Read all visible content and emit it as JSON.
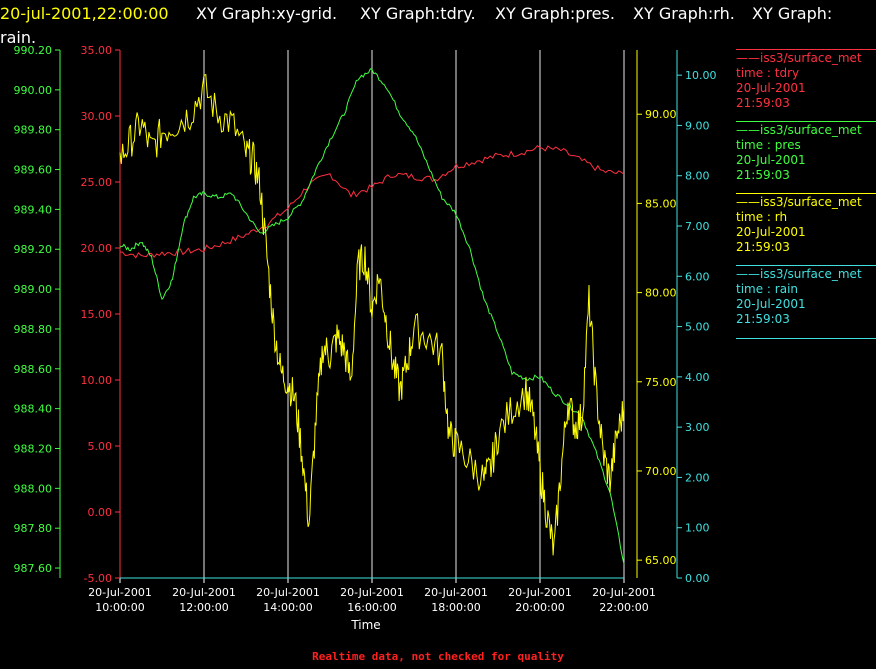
{
  "header": {
    "timestamp": "20-jul-2001,22:00:00",
    "segments": [
      "XY Graph:xy-grid.",
      "XY Graph:tdry.",
      "XY Graph:pres.",
      "XY Graph:rh.",
      "XY Graph:"
    ],
    "line2": "rain.",
    "timestamp_color": "#ffff00"
  },
  "footer": {
    "note": "Realtime data, not checked for quality",
    "color": "#ff2020"
  },
  "legend": [
    {
      "source": "iss3/surface_met",
      "var": "time : tdry",
      "date": "20-Jul-2001",
      "time": "21:59:03",
      "color": "#ff3040"
    },
    {
      "source": "iss3/surface_met",
      "var": "time : pres",
      "date": "20-Jul-2001",
      "time": "21:59:03",
      "color": "#40ff40"
    },
    {
      "source": "iss3/surface_met",
      "var": "time : rh",
      "date": "20-Jul-2001",
      "time": "21:59:03",
      "color": "#ffff00"
    },
    {
      "source": "iss3/surface_met",
      "var": "time : rain",
      "date": "20-Jul-2001",
      "time": "21:59:03",
      "color": "#40e0e0"
    }
  ],
  "chart_data": {
    "type": "line",
    "xlabel": "Time",
    "x_ticks": [
      {
        "date": "20-Jul-2001",
        "time": "10:00:00"
      },
      {
        "date": "20-Jul-2001",
        "time": "12:00:00"
      },
      {
        "date": "20-Jul-2001",
        "time": "14:00:00"
      },
      {
        "date": "20-Jul-2001",
        "time": "16:00:00"
      },
      {
        "date": "20-Jul-2001",
        "time": "18:00:00"
      },
      {
        "date": "20-Jul-2001",
        "time": "20:00:00"
      },
      {
        "date": "20-Jul-2001",
        "time": "22:00:00"
      }
    ],
    "xlim": [
      "20-Jul-2001 10:00:00",
      "20-Jul-2001 22:00:00"
    ],
    "grid": "vertical",
    "axes": [
      {
        "name": "tdry",
        "color": "#ff3040",
        "ylim": [
          -5,
          35
        ],
        "ticks": [
          "35.00",
          "30.00",
          "25.00",
          "20.00",
          "15.00",
          "10.00",
          "5.00",
          "0.00",
          "-5.00"
        ]
      },
      {
        "name": "pres",
        "color": "#40ff40",
        "ylim": [
          987.55,
          990.2
        ],
        "ticks": [
          "990.20",
          "990.00",
          "989.80",
          "989.60",
          "989.40",
          "989.20",
          "989.00",
          "988.80",
          "988.60",
          "988.40",
          "988.20",
          "988.00",
          "987.80",
          "987.60"
        ]
      },
      {
        "name": "rh",
        "color": "#ffff00",
        "ylim": [
          64,
          93.6
        ],
        "ticks": [
          "90.00",
          "85.00",
          "80.00",
          "75.00",
          "70.00",
          "65.00"
        ]
      },
      {
        "name": "rain",
        "color": "#40e0e0",
        "ylim": [
          0,
          10.5
        ],
        "ticks": [
          "10.00",
          "9.00",
          "8.00",
          "7.00",
          "6.00",
          "5.00",
          "4.00",
          "3.00",
          "2.00",
          "1.00",
          "0.00"
        ]
      }
    ],
    "series": [
      {
        "name": "tdry",
        "axis": 0,
        "color": "#ff3040",
        "x": [
          "10:00",
          "10:30",
          "11:00",
          "11:30",
          "12:00",
          "12:30",
          "13:00",
          "13:30",
          "14:00",
          "14:30",
          "15:00",
          "15:30",
          "16:00",
          "16:30",
          "17:00",
          "17:30",
          "18:00",
          "18:30",
          "19:00",
          "19:30",
          "20:00",
          "20:30",
          "21:00",
          "21:30",
          "22:00"
        ],
        "values": [
          19.7,
          19.4,
          19.6,
          19.7,
          19.9,
          20.4,
          21.0,
          21.8,
          23.0,
          24.8,
          25.6,
          24.0,
          24.6,
          25.6,
          25.4,
          25.2,
          26.2,
          26.6,
          27.0,
          27.2,
          27.6,
          27.4,
          26.6,
          25.8,
          25.6
        ]
      },
      {
        "name": "pres",
        "axis": 1,
        "color": "#40ff40",
        "x": [
          "10:00",
          "10:15",
          "10:30",
          "10:45",
          "11:00",
          "11:15",
          "11:30",
          "11:45",
          "12:00",
          "12:20",
          "12:40",
          "13:00",
          "13:20",
          "13:40",
          "14:00",
          "14:20",
          "14:40",
          "15:00",
          "15:20",
          "15:40",
          "16:00",
          "16:20",
          "16:40",
          "17:00",
          "17:20",
          "17:40",
          "18:00",
          "18:20",
          "18:40",
          "19:00",
          "19:20",
          "19:40",
          "20:00",
          "20:20",
          "20:40",
          "21:00",
          "21:20",
          "21:40",
          "22:00"
        ],
        "values": [
          989.22,
          989.2,
          989.24,
          989.16,
          988.95,
          989.05,
          989.32,
          989.46,
          989.48,
          989.46,
          989.48,
          989.38,
          989.28,
          989.32,
          989.36,
          989.44,
          989.6,
          989.75,
          989.88,
          990.06,
          990.1,
          990.02,
          989.88,
          989.78,
          989.62,
          989.46,
          989.38,
          989.2,
          988.95,
          988.78,
          988.58,
          988.55,
          988.56,
          988.48,
          988.42,
          988.36,
          988.18,
          987.98,
          987.62
        ]
      },
      {
        "name": "rh",
        "axis": 2,
        "color": "#ffff00",
        "x": [
          "10:00",
          "10:15",
          "10:30",
          "10:45",
          "11:00",
          "11:20",
          "11:40",
          "12:00",
          "12:20",
          "12:40",
          "13:00",
          "13:10",
          "13:20",
          "13:30",
          "13:40",
          "13:50",
          "14:00",
          "14:10",
          "14:20",
          "14:30",
          "14:40",
          "14:50",
          "15:00",
          "15:10",
          "15:20",
          "15:30",
          "15:40",
          "15:50",
          "16:00",
          "16:10",
          "16:20",
          "16:30",
          "16:40",
          "16:50",
          "17:00",
          "17:20",
          "17:40",
          "17:50",
          "18:00",
          "18:20",
          "18:40",
          "18:50",
          "19:00",
          "19:20",
          "19:40",
          "19:50",
          "20:00",
          "20:10",
          "20:20",
          "20:30",
          "20:40",
          "20:50",
          "21:00",
          "21:10",
          "21:20",
          "21:30",
          "21:40",
          "21:50",
          "22:00"
        ],
        "values": [
          87.5,
          88.5,
          89.5,
          88.0,
          89.0,
          89.5,
          90.0,
          91.5,
          90.0,
          89.5,
          87.8,
          87.5,
          86.0,
          82.0,
          78.0,
          75.5,
          75.0,
          74.0,
          71.0,
          67.0,
          73.0,
          77.0,
          76.5,
          77.5,
          76.8,
          75.0,
          81.5,
          82.0,
          79.0,
          81.0,
          78.5,
          76.0,
          74.5,
          76.0,
          78.0,
          77.5,
          76.5,
          72.0,
          71.5,
          70.5,
          69.5,
          70.2,
          72.0,
          73.5,
          74.5,
          73.0,
          70.0,
          67.5,
          65.5,
          70.0,
          74.0,
          72.5,
          73.0,
          79.5,
          74.5,
          71.0,
          69.5,
          72.0,
          73.5
        ]
      },
      {
        "name": "rain",
        "axis": 3,
        "color": "#40e0e0",
        "x": [
          "10:00",
          "22:00"
        ],
        "values": [
          0.0,
          0.0
        ]
      }
    ]
  }
}
